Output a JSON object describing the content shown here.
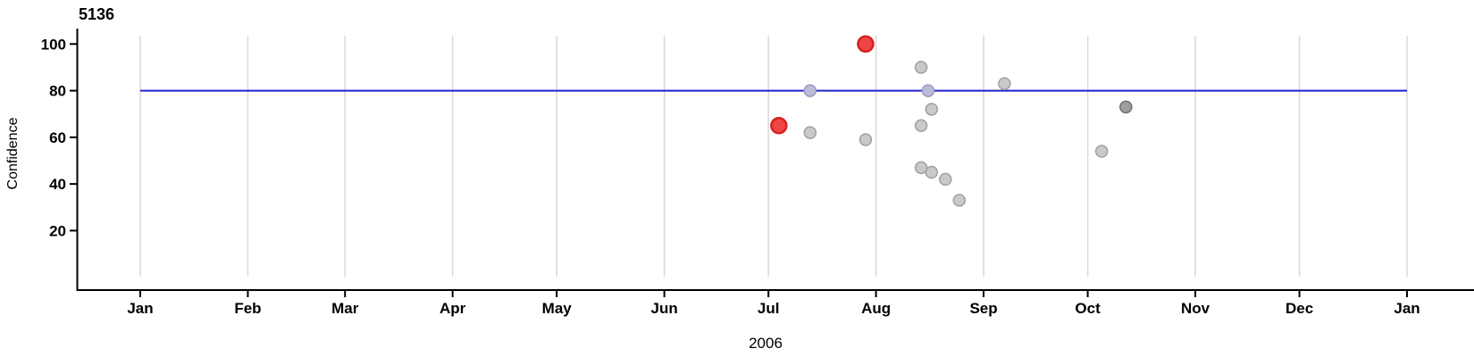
{
  "page": {
    "background_color": "#ffffff"
  },
  "chart_data": {
    "type": "scatter",
    "title": "5136",
    "xlabel": "2006",
    "ylabel": "Confidence",
    "grid": "vertical-month-gridlines",
    "legend_position": "none",
    "colors": {
      "axis": "#000000",
      "gridline": "#d9d9d9",
      "threshold_line": "#2121cd",
      "text": "#000000"
    },
    "x_axis": {
      "unit": "date",
      "ticks": [
        {
          "label": "Jan",
          "date": "2006-01-01"
        },
        {
          "label": "Feb",
          "date": "2006-02-01"
        },
        {
          "label": "Mar",
          "date": "2006-03-01"
        },
        {
          "label": "Apr",
          "date": "2006-04-01"
        },
        {
          "label": "May",
          "date": "2006-05-01"
        },
        {
          "label": "Jun",
          "date": "2006-06-01"
        },
        {
          "label": "Jul",
          "date": "2006-07-01"
        },
        {
          "label": "Aug",
          "date": "2006-08-01"
        },
        {
          "label": "Sep",
          "date": "2006-09-01"
        },
        {
          "label": "Oct",
          "date": "2006-10-01"
        },
        {
          "label": "Nov",
          "date": "2006-11-01"
        },
        {
          "label": "Dec",
          "date": "2006-12-01"
        },
        {
          "label": "Jan",
          "date": "2007-01-01"
        }
      ]
    },
    "y_axis": {
      "ticks": [
        100,
        80,
        60,
        40,
        20
      ],
      "ylim_shown": [
        0,
        105
      ]
    },
    "threshold_line": {
      "value": 80,
      "from_date": "2006-01-01",
      "to_date": "2007-01-01",
      "color": "#2121cd"
    },
    "point_styles": {
      "normal": {
        "fill": "#c9c9c9",
        "stroke": "#a0a0a0",
        "radius": 6.5,
        "stroke_width": 1.5
      },
      "dark": {
        "fill": "#9e9e9e",
        "stroke": "#6f6f6f",
        "radius": 6.5,
        "stroke_width": 1.5
      },
      "on_threshold": {
        "fill": "#bcbcda",
        "stroke": "#9898c2",
        "radius": 6.5,
        "stroke_width": 1.5
      },
      "flagged": {
        "fill": "#ee4545",
        "stroke": "#d42222",
        "radius": 8.5,
        "stroke_width": 2.5
      }
    },
    "points": [
      {
        "date": "2006-07-13",
        "confidence": 62,
        "category": "normal"
      },
      {
        "date": "2006-07-29",
        "confidence": 59,
        "category": "normal"
      },
      {
        "date": "2006-08-14",
        "confidence": 90,
        "category": "normal"
      },
      {
        "date": "2006-08-14",
        "confidence": 65,
        "category": "normal"
      },
      {
        "date": "2006-08-14",
        "confidence": 47,
        "category": "normal"
      },
      {
        "date": "2006-08-16",
        "confidence": 80,
        "category": "on_threshold"
      },
      {
        "date": "2006-08-17",
        "confidence": 72,
        "category": "normal"
      },
      {
        "date": "2006-08-17",
        "confidence": 45,
        "category": "normal"
      },
      {
        "date": "2006-08-21",
        "confidence": 42,
        "category": "normal"
      },
      {
        "date": "2006-08-25",
        "confidence": 33,
        "category": "normal"
      },
      {
        "date": "2006-09-07",
        "confidence": 83,
        "category": "normal"
      },
      {
        "date": "2006-10-05",
        "confidence": 54,
        "category": "normal"
      },
      {
        "date": "2006-10-12",
        "confidence": 73,
        "category": "dark"
      },
      {
        "date": "2006-07-13",
        "confidence": 80,
        "category": "on_threshold"
      },
      {
        "date": "2006-07-04",
        "confidence": 65,
        "category": "flagged"
      },
      {
        "date": "2006-07-29",
        "confidence": 100,
        "category": "flagged"
      }
    ]
  }
}
